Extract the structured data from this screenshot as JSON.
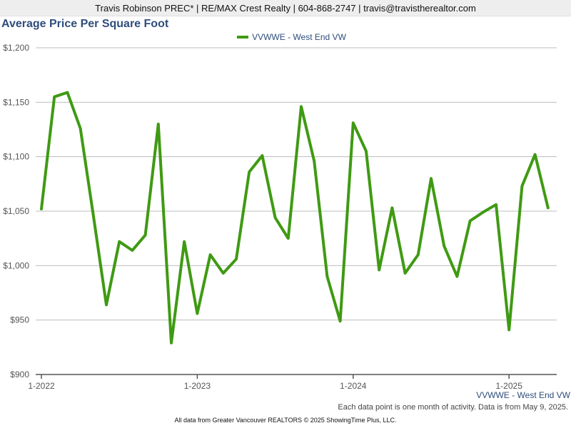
{
  "header": {
    "text": "Travis Robinson PREC* | RE/MAX Crest Realty | 604-868-2747 | travis@travistherealtor.com"
  },
  "chart_data": {
    "type": "line",
    "title": "Average Price Per Square Foot",
    "xlabel": "",
    "ylabel": "",
    "ylim": [
      900,
      1200
    ],
    "y_ticks": [
      900,
      950,
      1000,
      1050,
      1100,
      1150,
      1200
    ],
    "y_tick_labels": [
      "$900",
      "$950",
      "$1,000",
      "$1,050",
      "$1,100",
      "$1,150",
      "$1,200"
    ],
    "x_ticks": [
      {
        "index": 0,
        "label": "1-2022"
      },
      {
        "index": 12,
        "label": "1-2023"
      },
      {
        "index": 24,
        "label": "1-2024"
      },
      {
        "index": 36,
        "label": "1-2025"
      }
    ],
    "grid": true,
    "legend_position": "top-center",
    "series": [
      {
        "name": "VVWWE - West End VW",
        "color": "#3f9a13",
        "x": [
          "1-2022",
          "2-2022",
          "3-2022",
          "4-2022",
          "5-2022",
          "6-2022",
          "7-2022",
          "8-2022",
          "9-2022",
          "10-2022",
          "11-2022",
          "12-2022",
          "1-2023",
          "2-2023",
          "3-2023",
          "4-2023",
          "5-2023",
          "6-2023",
          "7-2023",
          "8-2023",
          "9-2023",
          "10-2023",
          "11-2023",
          "12-2023",
          "1-2024",
          "2-2024",
          "3-2024",
          "4-2024",
          "5-2024",
          "6-2024",
          "7-2024",
          "8-2024",
          "9-2024",
          "10-2024",
          "11-2024",
          "12-2024",
          "1-2025",
          "2-2025",
          "3-2025",
          "4-2025"
        ],
        "values": [
          1052,
          1155,
          1159,
          1126,
          1046,
          964,
          1022,
          1014,
          1028,
          1130,
          929,
          1022,
          956,
          1010,
          993,
          1006,
          1086,
          1101,
          1044,
          1025,
          1146,
          1096,
          990,
          949,
          1131,
          1105,
          996,
          1053,
          993,
          1010,
          1080,
          1018,
          990,
          1041,
          1049,
          1056,
          941,
          1073,
          1102,
          1053
        ]
      }
    ]
  },
  "series_label": "VVWWE - West End VW",
  "note": "Each data point is one month of activity. Data is from May 9, 2025.",
  "footer": "All data from Greater Vancouver REALTORS © 2025 ShowingTime Plus, LLC."
}
